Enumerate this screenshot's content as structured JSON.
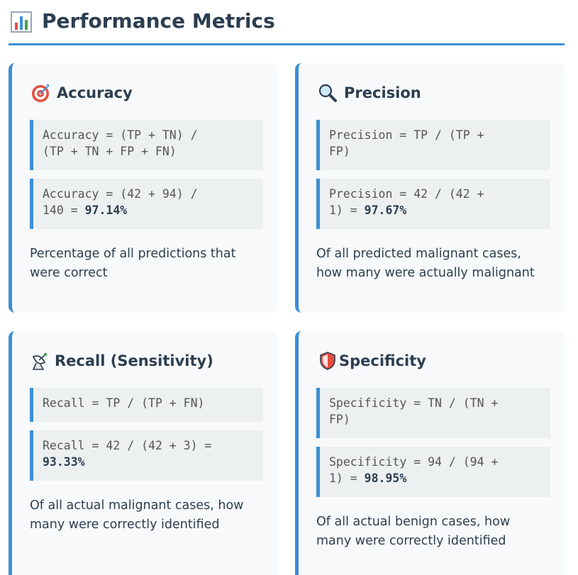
{
  "header": {
    "title": "Performance Metrics",
    "icon": "bar-chart-icon"
  },
  "colors": {
    "accent": "#3b8fd4",
    "card_bg": "#f8f9fa",
    "code_bg": "#ecf0f1",
    "text": "#2c3e50"
  },
  "cards": [
    {
      "title": "Accuracy",
      "icon": "target-icon",
      "formula_line1": "Accuracy = (TP + TN) /",
      "formula_line2": "(TP + TN + FP + FN)",
      "calc_line1": "Accuracy = (42 + 94) /",
      "calc_prefix": "140 = ",
      "calc_result": "97.14%",
      "description_line1": "Percentage of all predictions that",
      "description_line2": "were correct"
    },
    {
      "title": "Precision",
      "icon": "magnifier-icon",
      "formula_line1": "Precision = TP / (TP +",
      "formula_line2": "FP)",
      "calc_line1": "Precision = 42 / (42 +",
      "calc_prefix": "1) = ",
      "calc_result": "97.67%",
      "description_line1": "Of all predicted malignant cases,",
      "description_line2": "how many were actually malignant"
    },
    {
      "title": "Recall (Sensitivity)",
      "icon": "satellite-dish-icon",
      "formula_line1": "Recall = TP / (TP + FN)",
      "calc_line1": "Recall = 42 / (42 + 3) =",
      "calc_result": "93.33%",
      "description_line1": "Of all actual malignant cases, how",
      "description_line2": "many were correctly identified"
    },
    {
      "title": "Specificity",
      "icon": "shield-icon",
      "formula_line1": "Specificity = TN / (TN +",
      "formula_line2": "FP)",
      "calc_line1": "Specificity = 94 / (94 +",
      "calc_prefix": "1) = ",
      "calc_result": "98.95%",
      "description_line1": "Of all actual benign cases, how",
      "description_line2": "many were correctly identified"
    }
  ]
}
